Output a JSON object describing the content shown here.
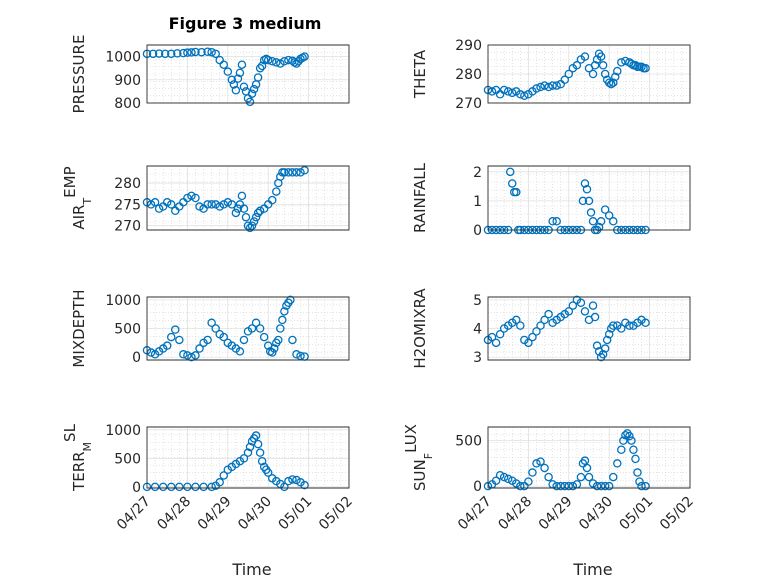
{
  "figure": {
    "title": "Figure 3 medium",
    "marker_color": "#0072BD",
    "grid": "major and minor (dotted)",
    "x_tick_labels": [
      "04/27",
      "04/28",
      "04/29",
      "04/30",
      "05/01",
      "05/02"
    ]
  },
  "chart_data": [
    {
      "type": "scatter",
      "xlabel": "",
      "ylabel": "PRESSURE",
      "ylim": [
        800,
        1050
      ],
      "yticks": [
        800,
        900,
        1000
      ],
      "xlim": [
        "04/27",
        "05/02"
      ],
      "x": [
        0.0,
        0.15,
        0.3,
        0.45,
        0.6,
        0.75,
        0.9,
        1.0,
        1.1,
        1.2,
        1.35,
        1.5,
        1.6,
        1.7,
        1.8,
        1.9,
        2.0,
        2.1,
        2.15,
        2.2,
        2.25,
        2.3,
        2.35,
        2.4,
        2.45,
        2.5,
        2.55,
        2.6,
        2.65,
        2.7,
        2.75,
        2.8,
        2.85,
        2.9,
        2.95,
        3.0,
        3.1,
        3.2,
        3.3,
        3.4,
        3.5,
        3.6,
        3.65,
        3.7,
        3.75,
        3.8,
        3.85,
        3.9
      ],
      "y": [
        1012,
        1012,
        1013,
        1012,
        1012,
        1014,
        1015,
        1017,
        1018,
        1020,
        1019,
        1021,
        1019,
        1012,
        985,
        965,
        935,
        900,
        880,
        855,
        905,
        930,
        965,
        870,
        850,
        820,
        805,
        840,
        860,
        880,
        910,
        950,
        960,
        985,
        990,
        985,
        980,
        975,
        970,
        980,
        985,
        982,
        975,
        970,
        980,
        990,
        995,
        1000
      ]
    },
    {
      "type": "scatter",
      "xlabel": "",
      "ylabel": "THETA",
      "ylim": [
        270,
        290
      ],
      "yticks": [
        270,
        280,
        290
      ],
      "xlim": [
        "04/27",
        "05/02"
      ],
      "x": [
        0.0,
        0.1,
        0.2,
        0.3,
        0.4,
        0.5,
        0.6,
        0.7,
        0.8,
        0.9,
        1.0,
        1.1,
        1.2,
        1.3,
        1.4,
        1.5,
        1.6,
        1.7,
        1.8,
        1.9,
        2.0,
        2.1,
        2.2,
        2.3,
        2.4,
        2.5,
        2.6,
        2.65,
        2.7,
        2.75,
        2.8,
        2.85,
        2.9,
        2.95,
        3.0,
        3.05,
        3.1,
        3.15,
        3.2,
        3.3,
        3.4,
        3.5,
        3.55,
        3.6,
        3.65,
        3.7,
        3.75,
        3.8,
        3.85,
        3.9
      ],
      "y": [
        274.5,
        274,
        274.5,
        273,
        274.5,
        274,
        273.5,
        274,
        273,
        272.5,
        273,
        274,
        275,
        275.5,
        276,
        275.5,
        276,
        276,
        276.5,
        278,
        280,
        282,
        283,
        285,
        286,
        282,
        280,
        283,
        285,
        287,
        286,
        283,
        280,
        278,
        277,
        276.5,
        277,
        279,
        281,
        284,
        284.5,
        284,
        283.5,
        283,
        283,
        282.5,
        282.5,
        282.5,
        282,
        282
      ]
    },
    {
      "type": "scatter",
      "xlabel": "",
      "ylabel": "AIR_TEMP",
      "ylim": [
        269,
        284
      ],
      "yticks": [
        270,
        275,
        280
      ],
      "xlim": [
        "04/27",
        "05/02"
      ],
      "x": [
        0.0,
        0.1,
        0.2,
        0.3,
        0.4,
        0.5,
        0.6,
        0.7,
        0.8,
        0.9,
        1.0,
        1.1,
        1.2,
        1.3,
        1.4,
        1.5,
        1.6,
        1.7,
        1.8,
        1.9,
        2.0,
        2.1,
        2.2,
        2.25,
        2.3,
        2.35,
        2.4,
        2.45,
        2.5,
        2.55,
        2.6,
        2.65,
        2.7,
        2.75,
        2.8,
        2.9,
        3.0,
        3.1,
        3.2,
        3.25,
        3.3,
        3.35,
        3.4,
        3.5,
        3.6,
        3.7,
        3.8,
        3.9
      ],
      "y": [
        275.5,
        275,
        275.5,
        274,
        274.5,
        275.5,
        275,
        273.5,
        274.5,
        275.5,
        276.5,
        277,
        276.5,
        274.5,
        274,
        275,
        275,
        275,
        274.5,
        275,
        275.5,
        275,
        273,
        274,
        275,
        277,
        274,
        272,
        270,
        269.5,
        270,
        271,
        272,
        273,
        273.5,
        274,
        275,
        276,
        278,
        280,
        281.5,
        282.5,
        282.5,
        282.5,
        282.5,
        282.5,
        282.5,
        283
      ]
    },
    {
      "type": "scatter",
      "xlabel": "",
      "ylabel": "RAINFALL",
      "ylim": [
        0,
        2.2
      ],
      "yticks": [
        0,
        1,
        2
      ],
      "xlim": [
        "04/27",
        "05/02"
      ],
      "x": [
        0.0,
        0.1,
        0.2,
        0.3,
        0.4,
        0.5,
        0.55,
        0.6,
        0.65,
        0.7,
        0.75,
        0.8,
        0.9,
        1.0,
        1.1,
        1.2,
        1.3,
        1.4,
        1.5,
        1.6,
        1.7,
        1.8,
        1.9,
        2.0,
        2.1,
        2.2,
        2.3,
        2.35,
        2.4,
        2.45,
        2.5,
        2.55,
        2.6,
        2.65,
        2.7,
        2.75,
        2.8,
        2.9,
        3.0,
        3.1,
        3.2,
        3.3,
        3.4,
        3.5,
        3.6,
        3.7,
        3.8,
        3.9
      ],
      "y": [
        0,
        0,
        0,
        0,
        0,
        0,
        2.0,
        1.6,
        1.3,
        1.3,
        0,
        0,
        0,
        0,
        0,
        0,
        0,
        0,
        0,
        0.3,
        0.3,
        0,
        0,
        0,
        0,
        0,
        0,
        1.0,
        1.6,
        1.4,
        1.0,
        0.6,
        0.3,
        0,
        0,
        0.1,
        0.3,
        0.7,
        0.5,
        0.3,
        0,
        0,
        0,
        0,
        0,
        0,
        0,
        0
      ]
    },
    {
      "type": "scatter",
      "xlabel": "",
      "ylabel": "MIXDEPTH",
      "ylim": [
        -50,
        1050
      ],
      "yticks": [
        0,
        500,
        1000
      ],
      "xlim": [
        "04/27",
        "05/02"
      ],
      "x": [
        0.0,
        0.1,
        0.2,
        0.3,
        0.4,
        0.5,
        0.6,
        0.7,
        0.8,
        0.9,
        1.0,
        1.1,
        1.2,
        1.3,
        1.4,
        1.5,
        1.6,
        1.7,
        1.8,
        1.9,
        2.0,
        2.1,
        2.2,
        2.3,
        2.4,
        2.5,
        2.6,
        2.7,
        2.8,
        2.9,
        3.0,
        3.05,
        3.1,
        3.15,
        3.2,
        3.25,
        3.3,
        3.35,
        3.4,
        3.45,
        3.5,
        3.55,
        3.6,
        3.7,
        3.8,
        3.9
      ],
      "y": [
        120,
        80,
        50,
        100,
        150,
        200,
        350,
        480,
        300,
        50,
        30,
        0,
        30,
        150,
        250,
        300,
        600,
        500,
        400,
        350,
        250,
        200,
        150,
        100,
        300,
        450,
        500,
        600,
        500,
        350,
        200,
        100,
        80,
        150,
        250,
        300,
        500,
        650,
        800,
        900,
        950,
        1000,
        300,
        50,
        20,
        10
      ]
    },
    {
      "type": "scatter",
      "xlabel": "",
      "ylabel": "H2OMIXRA",
      "ylim": [
        2.9,
        5.1
      ],
      "yticks": [
        3,
        4,
        5
      ],
      "xlim": [
        "04/27",
        "05/02"
      ],
      "x": [
        0.0,
        0.1,
        0.2,
        0.3,
        0.4,
        0.5,
        0.6,
        0.7,
        0.8,
        0.9,
        1.0,
        1.1,
        1.2,
        1.3,
        1.4,
        1.5,
        1.6,
        1.7,
        1.8,
        1.9,
        2.0,
        2.1,
        2.2,
        2.3,
        2.4,
        2.5,
        2.6,
        2.65,
        2.7,
        2.75,
        2.8,
        2.85,
        2.9,
        2.95,
        3.0,
        3.05,
        3.1,
        3.2,
        3.3,
        3.4,
        3.5,
        3.6,
        3.7,
        3.8,
        3.9
      ],
      "y": [
        3.6,
        3.7,
        3.5,
        3.8,
        4.0,
        4.1,
        4.2,
        4.3,
        4.1,
        3.6,
        3.5,
        3.7,
        3.9,
        4.1,
        4.3,
        4.5,
        4.2,
        4.3,
        4.4,
        4.5,
        4.6,
        4.8,
        5.0,
        4.9,
        4.6,
        4.3,
        4.8,
        4.4,
        3.4,
        3.2,
        3.0,
        3.1,
        3.3,
        3.6,
        3.8,
        4.0,
        4.1,
        4.1,
        4.0,
        4.2,
        4.1,
        4.1,
        4.2,
        4.3,
        4.2
      ]
    },
    {
      "type": "scatter",
      "xlabel": "Time",
      "ylabel": "TERR_MSL",
      "ylim": [
        -20,
        1050
      ],
      "yticks": [
        0,
        500,
        1000
      ],
      "xlim": [
        "04/27",
        "05/02"
      ],
      "x": [
        0.0,
        0.2,
        0.4,
        0.6,
        0.8,
        1.0,
        1.2,
        1.4,
        1.6,
        1.7,
        1.8,
        1.9,
        2.0,
        2.1,
        2.2,
        2.3,
        2.4,
        2.5,
        2.55,
        2.6,
        2.65,
        2.7,
        2.75,
        2.8,
        2.85,
        2.9,
        2.95,
        3.0,
        3.1,
        3.2,
        3.3,
        3.4,
        3.5,
        3.6,
        3.7,
        3.8,
        3.9
      ],
      "y": [
        0,
        0,
        0,
        0,
        0,
        0,
        0,
        0,
        0,
        20,
        80,
        200,
        300,
        350,
        400,
        450,
        500,
        600,
        700,
        800,
        850,
        900,
        750,
        600,
        450,
        350,
        300,
        250,
        150,
        100,
        50,
        0,
        100,
        130,
        120,
        80,
        30
      ]
    },
    {
      "type": "scatter",
      "xlabel": "Time",
      "ylabel": "SUN_FLUX",
      "ylim": [
        -20,
        650
      ],
      "yticks": [
        0,
        500
      ],
      "xlim": [
        "04/27",
        "05/02"
      ],
      "x": [
        0.0,
        0.1,
        0.2,
        0.3,
        0.4,
        0.5,
        0.6,
        0.7,
        0.8,
        0.9,
        1.0,
        1.1,
        1.2,
        1.3,
        1.4,
        1.5,
        1.6,
        1.7,
        1.8,
        1.9,
        2.0,
        2.1,
        2.2,
        2.3,
        2.35,
        2.4,
        2.45,
        2.5,
        2.6,
        2.7,
        2.8,
        2.9,
        3.0,
        3.1,
        3.2,
        3.3,
        3.35,
        3.4,
        3.45,
        3.5,
        3.55,
        3.6,
        3.65,
        3.7,
        3.75,
        3.8,
        3.9
      ],
      "y": [
        0,
        20,
        60,
        120,
        100,
        80,
        60,
        30,
        0,
        0,
        50,
        150,
        250,
        270,
        200,
        100,
        20,
        0,
        0,
        0,
        0,
        0,
        20,
        100,
        250,
        280,
        200,
        100,
        30,
        0,
        0,
        0,
        0,
        100,
        250,
        400,
        500,
        560,
        580,
        550,
        500,
        400,
        300,
        150,
        50,
        0,
        0
      ]
    }
  ]
}
